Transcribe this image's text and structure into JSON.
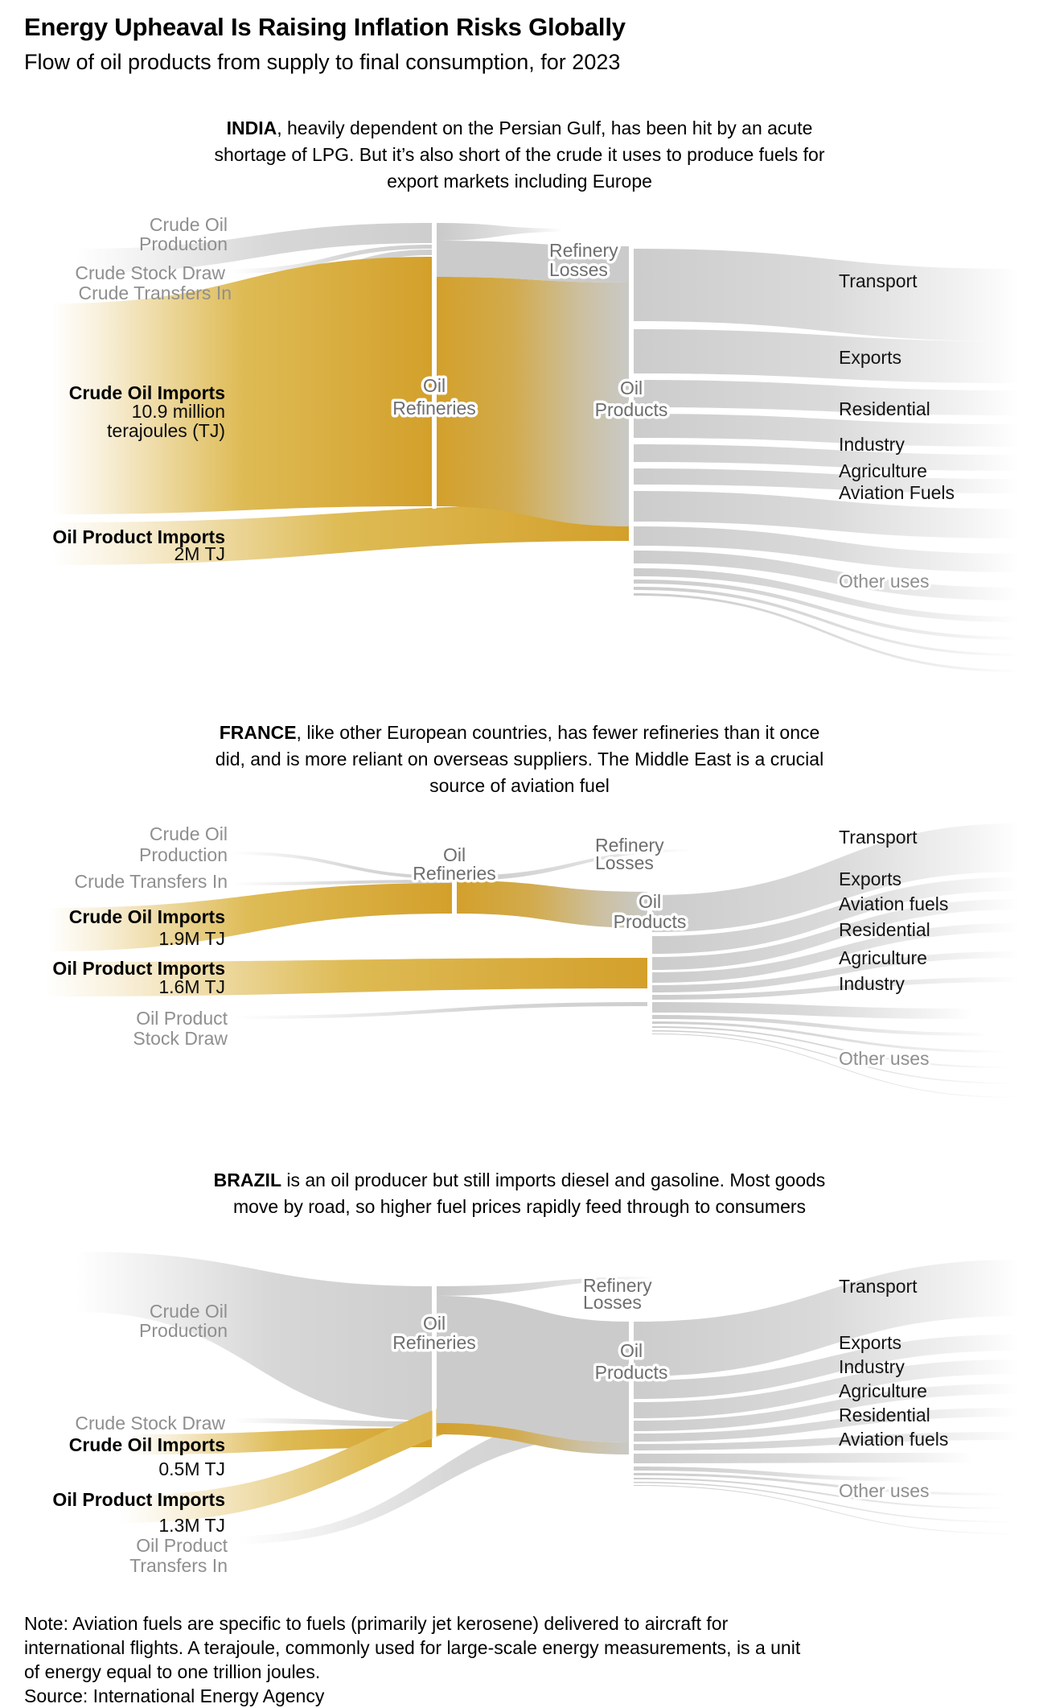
{
  "header": {
    "title": "Energy Upheaval Is Raising Inflation Risks Globally",
    "subtitle": "Flow of oil products from supply to final consumption, for 2023"
  },
  "colors": {
    "gold": "#D3A02B",
    "flow_gray": "#CBCBCB",
    "label_gray": "#8F8F8F",
    "node_label_gray": "#6E6E6E"
  },
  "sections": [
    {
      "country": "INDIA",
      "intro": {
        "lead": "INDIA",
        "line1_rest": ", heavily dependent on the Persian Gulf, has been hit by an acute",
        "line2": "shortage of LPG. But it’s also short of the crude it uses to produce fuels for",
        "line3": "export markets including Europe"
      }
    },
    {
      "country": "FRANCE",
      "intro": {
        "lead": "FRANCE",
        "line1_rest": ", like other European countries, has fewer refineries than it once",
        "line2": "did, and is more reliant on overseas suppliers. The Middle East is a crucial",
        "line3": "source of aviation fuel"
      }
    },
    {
      "country": "BRAZIL",
      "intro": {
        "lead": "BRAZIL",
        "line1_rest": " is an oil producer but still imports diesel and gasoline. Most goods",
        "line2": "move by road, so higher fuel prices rapidly feed through to consumers"
      }
    }
  ],
  "chart_data": [
    {
      "type": "sankey",
      "country": "India",
      "year": 2023,
      "unit": "terajoules (TJ)",
      "sources": [
        {
          "name": "Crude Oil Production",
          "label_lines": [
            "Crude Oil",
            "Production"
          ],
          "style": "gray",
          "to": "Oil Refineries"
        },
        {
          "name": "Crude Stock Draw",
          "label_lines": [
            "Crude Stock Draw"
          ],
          "style": "gray",
          "to": "Oil Refineries"
        },
        {
          "name": "Crude Transfers In",
          "label_lines": [
            "Crude Transfers In"
          ],
          "style": "gray",
          "to": "Oil Refineries"
        },
        {
          "name": "Crude Oil Imports",
          "label_lines": [
            "Crude Oil Imports"
          ],
          "value_lines": [
            "10.9 million",
            "terajoules (TJ)"
          ],
          "value_million_tj": 10.9,
          "style": "gold",
          "to": "Oil Refineries"
        },
        {
          "name": "Oil Product Imports",
          "label_lines": [
            "Oil Product Imports"
          ],
          "value_lines": [
            "2M TJ"
          ],
          "value_million_tj": 2,
          "style": "gold",
          "to": "Oil Products"
        }
      ],
      "nodes": [
        {
          "name": "Oil Refineries",
          "label_lines": [
            "Oil",
            "Refineries"
          ]
        },
        {
          "name": "Oil Products",
          "label_lines": [
            "Oil",
            "Products"
          ]
        },
        {
          "name": "Refinery Losses",
          "label_lines": [
            "Refinery",
            "Losses"
          ]
        }
      ],
      "destinations": [
        {
          "label": "Transport",
          "style": "black"
        },
        {
          "label": "Exports",
          "style": "black"
        },
        {
          "label": "Residential",
          "style": "black"
        },
        {
          "label": "Industry",
          "style": "black"
        },
        {
          "label": "Agriculture",
          "style": "black"
        },
        {
          "label": "Aviation Fuels",
          "style": "black"
        },
        {
          "label": "Other uses",
          "style": "gray"
        }
      ]
    },
    {
      "type": "sankey",
      "country": "France",
      "year": 2023,
      "unit": "terajoules (TJ)",
      "sources": [
        {
          "name": "Crude Oil Production",
          "label_lines": [
            "Crude Oil",
            "Production"
          ],
          "style": "gray",
          "to": "Oil Refineries"
        },
        {
          "name": "Crude Transfers In",
          "label_lines": [
            "Crude Transfers In"
          ],
          "style": "gray",
          "to": "Oil Refineries"
        },
        {
          "name": "Crude Oil Imports",
          "label_lines": [
            "Crude Oil Imports"
          ],
          "value_lines": [
            "1.9M TJ"
          ],
          "value_million_tj": 1.9,
          "style": "gold",
          "to": "Oil Refineries"
        },
        {
          "name": "Oil Product Imports",
          "label_lines": [
            "Oil Product Imports"
          ],
          "value_lines": [
            "1.6M TJ"
          ],
          "value_million_tj": 1.6,
          "style": "gold",
          "to": "Oil Products"
        },
        {
          "name": "Oil Product Stock Draw",
          "label_lines": [
            "Oil Product",
            "Stock Draw"
          ],
          "style": "gray",
          "to": "Oil Products"
        }
      ],
      "nodes": [
        {
          "name": "Oil Refineries",
          "label_lines": [
            "Oil",
            "Refineries"
          ]
        },
        {
          "name": "Oil Products",
          "label_lines": [
            "Oil",
            "Products"
          ]
        },
        {
          "name": "Refinery Losses",
          "label_lines": [
            "Refinery",
            "Losses"
          ]
        }
      ],
      "destinations": [
        {
          "label": "Transport",
          "style": "black"
        },
        {
          "label": "Exports",
          "style": "black"
        },
        {
          "label": "Aviation fuels",
          "style": "black"
        },
        {
          "label": "Residential",
          "style": "black"
        },
        {
          "label": "Agriculture",
          "style": "black"
        },
        {
          "label": "Industry",
          "style": "black"
        },
        {
          "label": "Other uses",
          "style": "gray"
        }
      ]
    },
    {
      "type": "sankey",
      "country": "Brazil",
      "year": 2023,
      "unit": "terajoules (TJ)",
      "sources": [
        {
          "name": "Crude Oil Production",
          "label_lines": [
            "Crude Oil",
            "Production"
          ],
          "style": "gray",
          "to": "Oil Refineries"
        },
        {
          "name": "Crude Stock Draw",
          "label_lines": [
            "Crude Stock Draw"
          ],
          "style": "gray",
          "to": "Oil Refineries"
        },
        {
          "name": "Crude Oil Imports",
          "label_lines": [
            "Crude Oil Imports"
          ],
          "value_lines": [
            "0.5M TJ"
          ],
          "value_million_tj": 0.5,
          "style": "gold",
          "to": "Oil Refineries"
        },
        {
          "name": "Oil Product Imports",
          "label_lines": [
            "Oil Product Imports"
          ],
          "value_lines": [
            "1.3M TJ"
          ],
          "value_million_tj": 1.3,
          "style": "gold",
          "to": "Oil Products"
        },
        {
          "name": "Oil Product Transfers In",
          "label_lines": [
            "Oil Product",
            "Transfers In"
          ],
          "style": "gray",
          "to": "Oil Products"
        }
      ],
      "nodes": [
        {
          "name": "Oil Refineries",
          "label_lines": [
            "Oil",
            "Refineries"
          ]
        },
        {
          "name": "Oil Products",
          "label_lines": [
            "Oil",
            "Products"
          ]
        },
        {
          "name": "Refinery Losses",
          "label_lines": [
            "Refinery",
            "Losses"
          ]
        }
      ],
      "destinations": [
        {
          "label": "Transport",
          "style": "black"
        },
        {
          "label": "Exports",
          "style": "black"
        },
        {
          "label": "Industry",
          "style": "black"
        },
        {
          "label": "Agriculture",
          "style": "black"
        },
        {
          "label": "Residential",
          "style": "black"
        },
        {
          "label": "Aviation fuels",
          "style": "black"
        },
        {
          "label": "Other uses",
          "style": "gray"
        }
      ]
    }
  ],
  "footer": {
    "note_lines": [
      "Note: Aviation fuels are specific to fuels (primarily jet kerosene) delivered to aircraft for",
      "international flights. A terajoule, commonly used for large-scale energy measurements, is a unit",
      "of energy equal to one trillion joules."
    ],
    "source": "Source: International Energy Agency"
  }
}
